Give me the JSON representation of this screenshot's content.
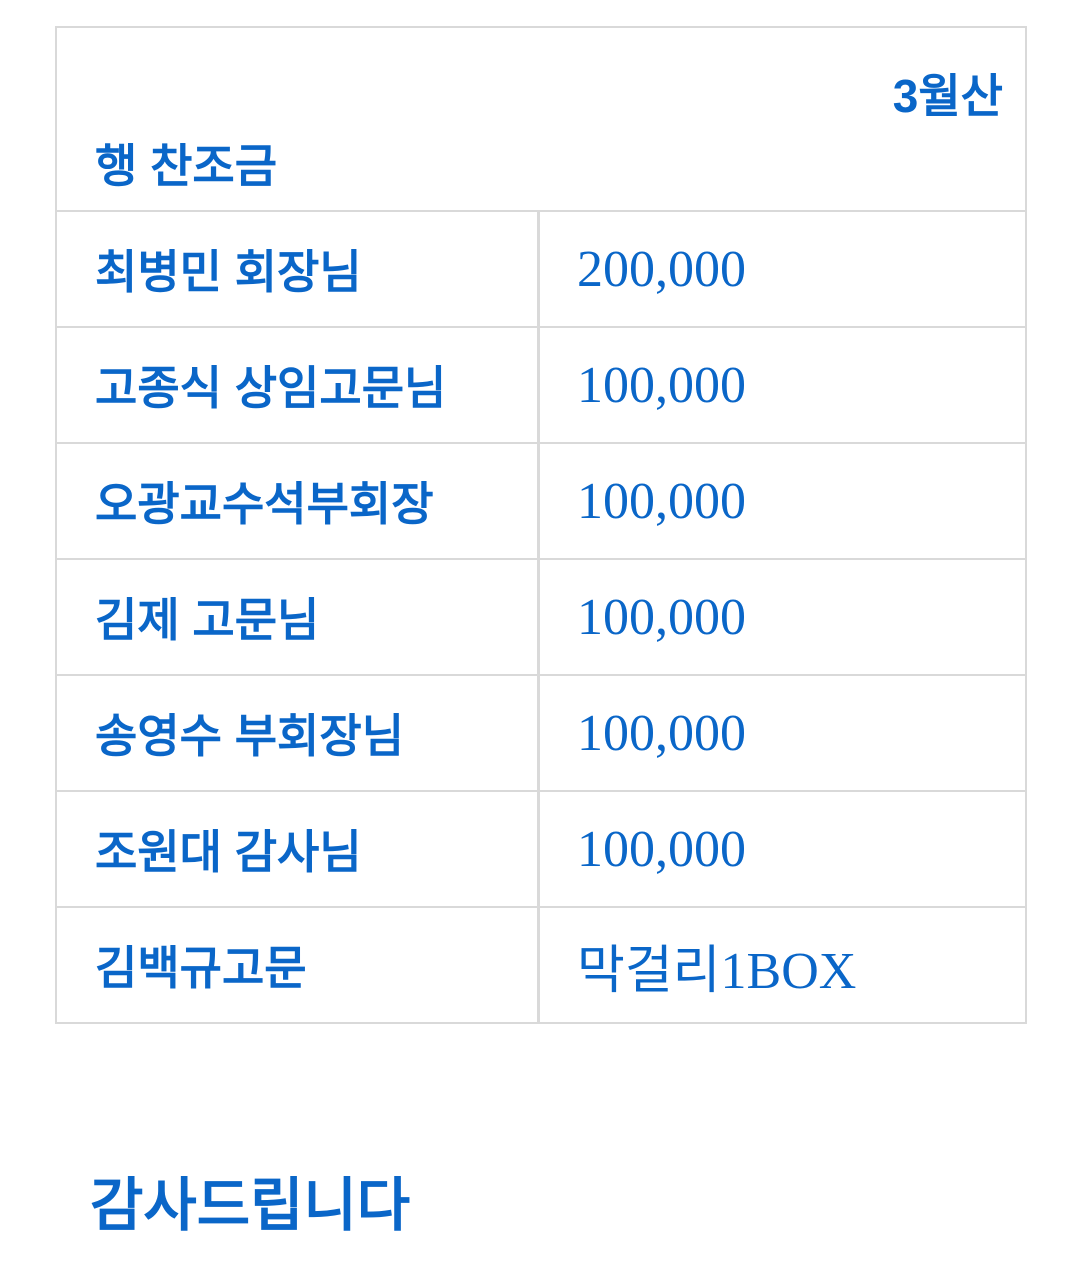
{
  "header": {
    "title_part1": "3월산",
    "title_part2": "행 찬조금"
  },
  "rows": [
    {
      "name": "최병민 회장님",
      "amount": "200,000"
    },
    {
      "name": "고종식 상임고문님",
      "amount": "100,000"
    },
    {
      "name": "오광교수석부회장",
      "amount": "100,000"
    },
    {
      "name": "김제 고문님",
      "amount": "100,000"
    },
    {
      "name": "송영수 부회장님",
      "amount": "100,000"
    },
    {
      "name": "조원대 감사님",
      "amount": "100,000"
    },
    {
      "name": "김백규고문",
      "amount": "막걸리1BOX"
    }
  ],
  "footer": {
    "thanks": "감사드립니다"
  },
  "colors": {
    "text": "#0a66c8",
    "border": "#d9d9d9"
  }
}
